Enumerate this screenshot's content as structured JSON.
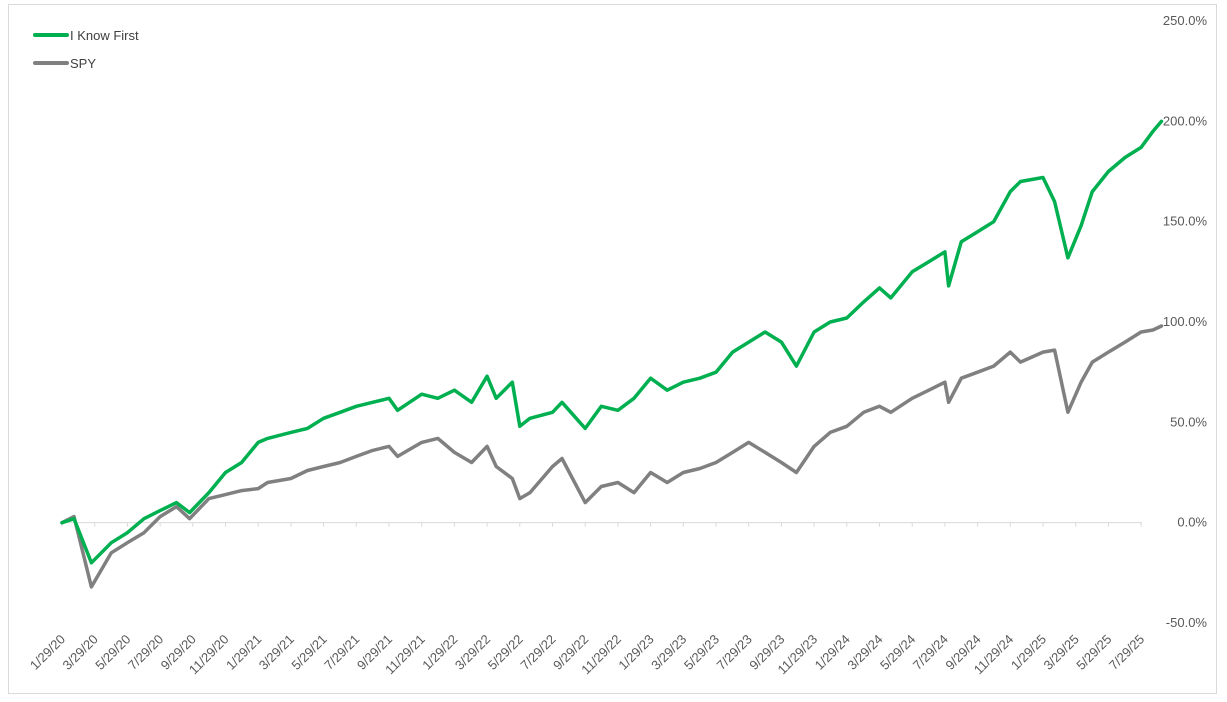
{
  "chart_data": {
    "type": "line",
    "title": "",
    "xlabel": "",
    "ylabel": "",
    "y_axis_position": "right",
    "ylim": [
      -0.5,
      2.5
    ],
    "y_ticks": [
      "250.0%",
      "200.0%",
      "150.0%",
      "100.0%",
      "50.0%",
      "0.0%",
      "-50.0%"
    ],
    "y_tick_values": [
      2.5,
      2.0,
      1.5,
      1.0,
      0.5,
      0.0,
      -0.5
    ],
    "x_ticks": [
      "1/29/20",
      "3/29/20",
      "5/29/20",
      "7/29/20",
      "9/29/20",
      "11/29/20",
      "1/29/21",
      "3/29/21",
      "5/29/21",
      "7/29/21",
      "9/29/21",
      "11/29/21",
      "1/29/22",
      "3/29/22",
      "5/29/22",
      "7/29/22",
      "9/29/22",
      "11/29/22",
      "1/29/23",
      "3/29/23",
      "5/29/23",
      "7/29/23",
      "9/29/23",
      "11/29/23",
      "1/29/24",
      "3/29/24",
      "5/29/24",
      "7/29/24",
      "9/29/24",
      "11/29/24",
      "1/29/25",
      "3/29/25",
      "5/29/25",
      "7/29/25"
    ],
    "legend_position": "top-left",
    "grid": false,
    "series": [
      {
        "name": "I Know First",
        "color": "#00b050",
        "x": [
          "1/29/20",
          "2/20/20",
          "3/23/20",
          "4/29/20",
          "5/29/20",
          "6/29/20",
          "7/29/20",
          "8/29/20",
          "9/23/20",
          "10/29/20",
          "11/29/20",
          "12/29/20",
          "1/29/21",
          "2/15/21",
          "3/29/21",
          "4/29/21",
          "5/29/21",
          "6/29/21",
          "7/29/21",
          "8/29/21",
          "9/29/21",
          "10/15/21",
          "11/29/21",
          "12/29/21",
          "1/29/22",
          "3/1/22",
          "3/29/22",
          "4/15/22",
          "5/15/22",
          "5/29/22",
          "6/17/22",
          "7/29/22",
          "8/16/22",
          "9/29/22",
          "10/29/22",
          "11/29/22",
          "12/29/22",
          "1/29/23",
          "2/28/23",
          "3/29/23",
          "4/29/23",
          "5/29/23",
          "6/29/23",
          "7/29/23",
          "8/29/23",
          "9/29/23",
          "10/27/23",
          "11/29/23",
          "12/29/23",
          "1/29/24",
          "2/29/24",
          "3/29/24",
          "4/19/24",
          "5/29/24",
          "6/29/24",
          "7/29/24",
          "8/5/24",
          "8/29/24",
          "9/29/24",
          "10/29/24",
          "11/29/24",
          "12/18/24",
          "1/29/25",
          "2/19/25",
          "3/15/25",
          "4/8/25",
          "4/29/25",
          "5/29/25",
          "6/29/25",
          "7/29/25",
          "8/20/25",
          "9/5/25"
        ],
        "values": [
          0.0,
          0.02,
          -0.2,
          -0.1,
          -0.05,
          0.02,
          0.06,
          0.1,
          0.05,
          0.15,
          0.25,
          0.3,
          0.4,
          0.42,
          0.45,
          0.47,
          0.52,
          0.55,
          0.58,
          0.6,
          0.62,
          0.56,
          0.64,
          0.62,
          0.66,
          0.6,
          0.73,
          0.62,
          0.7,
          0.48,
          0.52,
          0.55,
          0.6,
          0.47,
          0.58,
          0.56,
          0.62,
          0.72,
          0.66,
          0.7,
          0.72,
          0.75,
          0.85,
          0.9,
          0.95,
          0.9,
          0.78,
          0.95,
          1.0,
          1.02,
          1.1,
          1.17,
          1.12,
          1.25,
          1.3,
          1.35,
          1.18,
          1.4,
          1.45,
          1.5,
          1.65,
          1.7,
          1.72,
          1.6,
          1.32,
          1.48,
          1.65,
          1.75,
          1.82,
          1.87,
          1.95,
          2.0
        ]
      },
      {
        "name": "SPY",
        "color": "#808080",
        "x": [
          "1/29/20",
          "2/20/20",
          "3/23/20",
          "4/29/20",
          "5/29/20",
          "6/29/20",
          "7/29/20",
          "8/29/20",
          "9/23/20",
          "10/29/20",
          "11/29/20",
          "12/29/20",
          "1/29/21",
          "2/15/21",
          "3/29/21",
          "4/29/21",
          "5/29/21",
          "6/29/21",
          "7/29/21",
          "8/29/21",
          "9/29/21",
          "10/15/21",
          "11/29/21",
          "12/29/21",
          "1/29/22",
          "3/1/22",
          "3/29/22",
          "4/15/22",
          "5/15/22",
          "5/29/22",
          "6/17/22",
          "7/29/22",
          "8/16/22",
          "9/29/22",
          "10/29/22",
          "11/29/22",
          "12/29/22",
          "1/29/23",
          "2/28/23",
          "3/29/23",
          "4/29/23",
          "5/29/23",
          "6/29/23",
          "7/29/23",
          "8/29/23",
          "9/29/23",
          "10/27/23",
          "11/29/23",
          "12/29/23",
          "1/29/24",
          "2/29/24",
          "3/29/24",
          "4/19/24",
          "5/29/24",
          "6/29/24",
          "7/29/24",
          "8/5/24",
          "8/29/24",
          "9/29/24",
          "10/29/24",
          "11/29/24",
          "12/18/24",
          "1/29/25",
          "2/19/25",
          "3/15/25",
          "4/8/25",
          "4/29/25",
          "5/29/25",
          "6/29/25",
          "7/29/25",
          "8/20/25",
          "9/5/25"
        ],
        "values": [
          0.0,
          0.03,
          -0.32,
          -0.15,
          -0.1,
          -0.05,
          0.03,
          0.08,
          0.02,
          0.12,
          0.14,
          0.16,
          0.17,
          0.2,
          0.22,
          0.26,
          0.28,
          0.3,
          0.33,
          0.36,
          0.38,
          0.33,
          0.4,
          0.42,
          0.35,
          0.3,
          0.38,
          0.28,
          0.22,
          0.12,
          0.15,
          0.28,
          0.32,
          0.1,
          0.18,
          0.2,
          0.15,
          0.25,
          0.2,
          0.25,
          0.27,
          0.3,
          0.35,
          0.4,
          0.35,
          0.3,
          0.25,
          0.38,
          0.45,
          0.48,
          0.55,
          0.58,
          0.55,
          0.62,
          0.66,
          0.7,
          0.6,
          0.72,
          0.75,
          0.78,
          0.85,
          0.8,
          0.85,
          0.86,
          0.55,
          0.7,
          0.8,
          0.85,
          0.9,
          0.95,
          0.96,
          0.98
        ]
      }
    ]
  }
}
